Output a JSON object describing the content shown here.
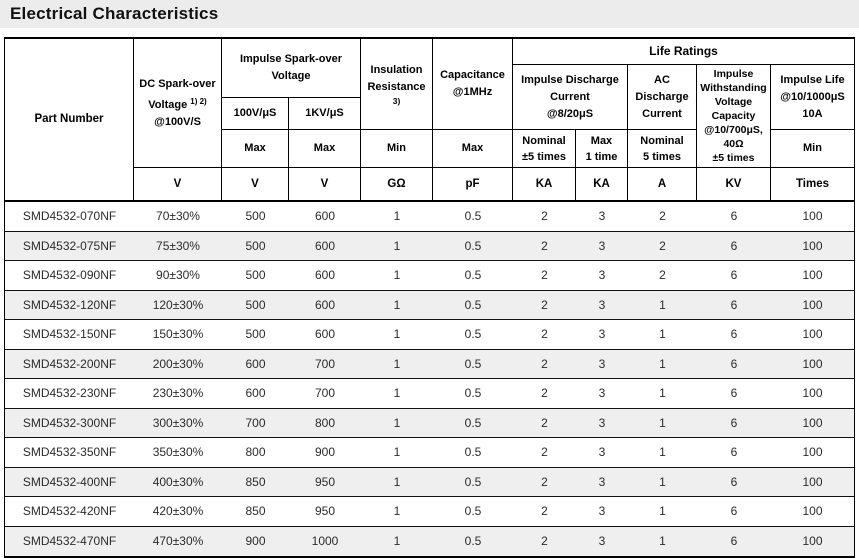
{
  "page_title": "Electrical Characteristics",
  "table": {
    "columns": {
      "part_number": {
        "label": "Part Number"
      },
      "dc_spark_over": {
        "line1": "DC Spark-over",
        "line2": "Voltage",
        "sup": "1) 2)",
        "line3": "@100V/S",
        "unit": "V"
      },
      "impulse_spark_over": {
        "lines": [
          "Impulse Spark-over",
          "Voltage"
        ],
        "sub": [
          {
            "label": "100V/μS",
            "limit": "Max",
            "unit": "V"
          },
          {
            "label": "1KV/μS",
            "limit": "Max",
            "unit": "V"
          }
        ]
      },
      "insulation_resistance": {
        "line1": "Insulation",
        "line2": "Resistance",
        "sup": "3)",
        "limit": "Min",
        "unit": "GΩ"
      },
      "capacitance": {
        "lines": [
          "Capacitance",
          "@1MHz"
        ],
        "limit": "Max",
        "unit": "pF"
      },
      "life_ratings": {
        "label": "Life Ratings",
        "impulse_discharge": {
          "lines": [
            "Impulse Discharge",
            "Current",
            "@8/20μS"
          ],
          "sub": [
            {
              "limit_lines": [
                "Nominal",
                "±5 times"
              ],
              "unit": "KA"
            },
            {
              "limit_lines": [
                "Max",
                "1 time"
              ],
              "unit": "KA"
            }
          ]
        },
        "ac_discharge": {
          "lines": [
            "AC",
            "Discharge",
            "Current"
          ],
          "limit_lines": [
            "Nominal",
            "5 times"
          ],
          "unit": "A"
        },
        "impulse_withstanding": {
          "lines": [
            "Impulse",
            "Withstanding",
            "Voltage",
            "Capacity",
            "@10/700μS,",
            "40Ω",
            "±5 times"
          ],
          "unit": "KV"
        },
        "impulse_life": {
          "lines": [
            "Impulse Life",
            "@10/1000μS",
            "10A"
          ],
          "limit": "Min",
          "unit": "Times"
        }
      }
    },
    "rows": [
      [
        "SMD4532-070NF",
        "70±30%",
        "500",
        "600",
        "1",
        "0.5",
        "2",
        "3",
        "2",
        "6",
        "100"
      ],
      [
        "SMD4532-075NF",
        "75±30%",
        "500",
        "600",
        "1",
        "0.5",
        "2",
        "3",
        "2",
        "6",
        "100"
      ],
      [
        "SMD4532-090NF",
        "90±30%",
        "500",
        "600",
        "1",
        "0.5",
        "2",
        "3",
        "2",
        "6",
        "100"
      ],
      [
        "SMD4532-120NF",
        "120±30%",
        "500",
        "600",
        "1",
        "0.5",
        "2",
        "3",
        "1",
        "6",
        "100"
      ],
      [
        "SMD4532-150NF",
        "150±30%",
        "500",
        "600",
        "1",
        "0.5",
        "2",
        "3",
        "1",
        "6",
        "100"
      ],
      [
        "SMD4532-200NF",
        "200±30%",
        "600",
        "700",
        "1",
        "0.5",
        "2",
        "3",
        "1",
        "6",
        "100"
      ],
      [
        "SMD4532-230NF",
        "230±30%",
        "600",
        "700",
        "1",
        "0.5",
        "2",
        "3",
        "1",
        "6",
        "100"
      ],
      [
        "SMD4532-300NF",
        "300±30%",
        "700",
        "800",
        "1",
        "0.5",
        "2",
        "3",
        "1",
        "6",
        "100"
      ],
      [
        "SMD4532-350NF",
        "350±30%",
        "800",
        "900",
        "1",
        "0.5",
        "2",
        "3",
        "1",
        "6",
        "100"
      ],
      [
        "SMD4532-400NF",
        "400±30%",
        "850",
        "950",
        "1",
        "0.5",
        "2",
        "3",
        "1",
        "6",
        "100"
      ],
      [
        "SMD4532-420NF",
        "420±30%",
        "850",
        "950",
        "1",
        "0.5",
        "2",
        "3",
        "1",
        "6",
        "100"
      ],
      [
        "SMD4532-470NF",
        "470±30%",
        "900",
        "1000",
        "1",
        "0.5",
        "2",
        "3",
        "1",
        "6",
        "100"
      ]
    ],
    "colors": {
      "title_bar_bg": "#ececec",
      "alt_row_bg": "#efefef",
      "border": "#000000"
    }
  }
}
